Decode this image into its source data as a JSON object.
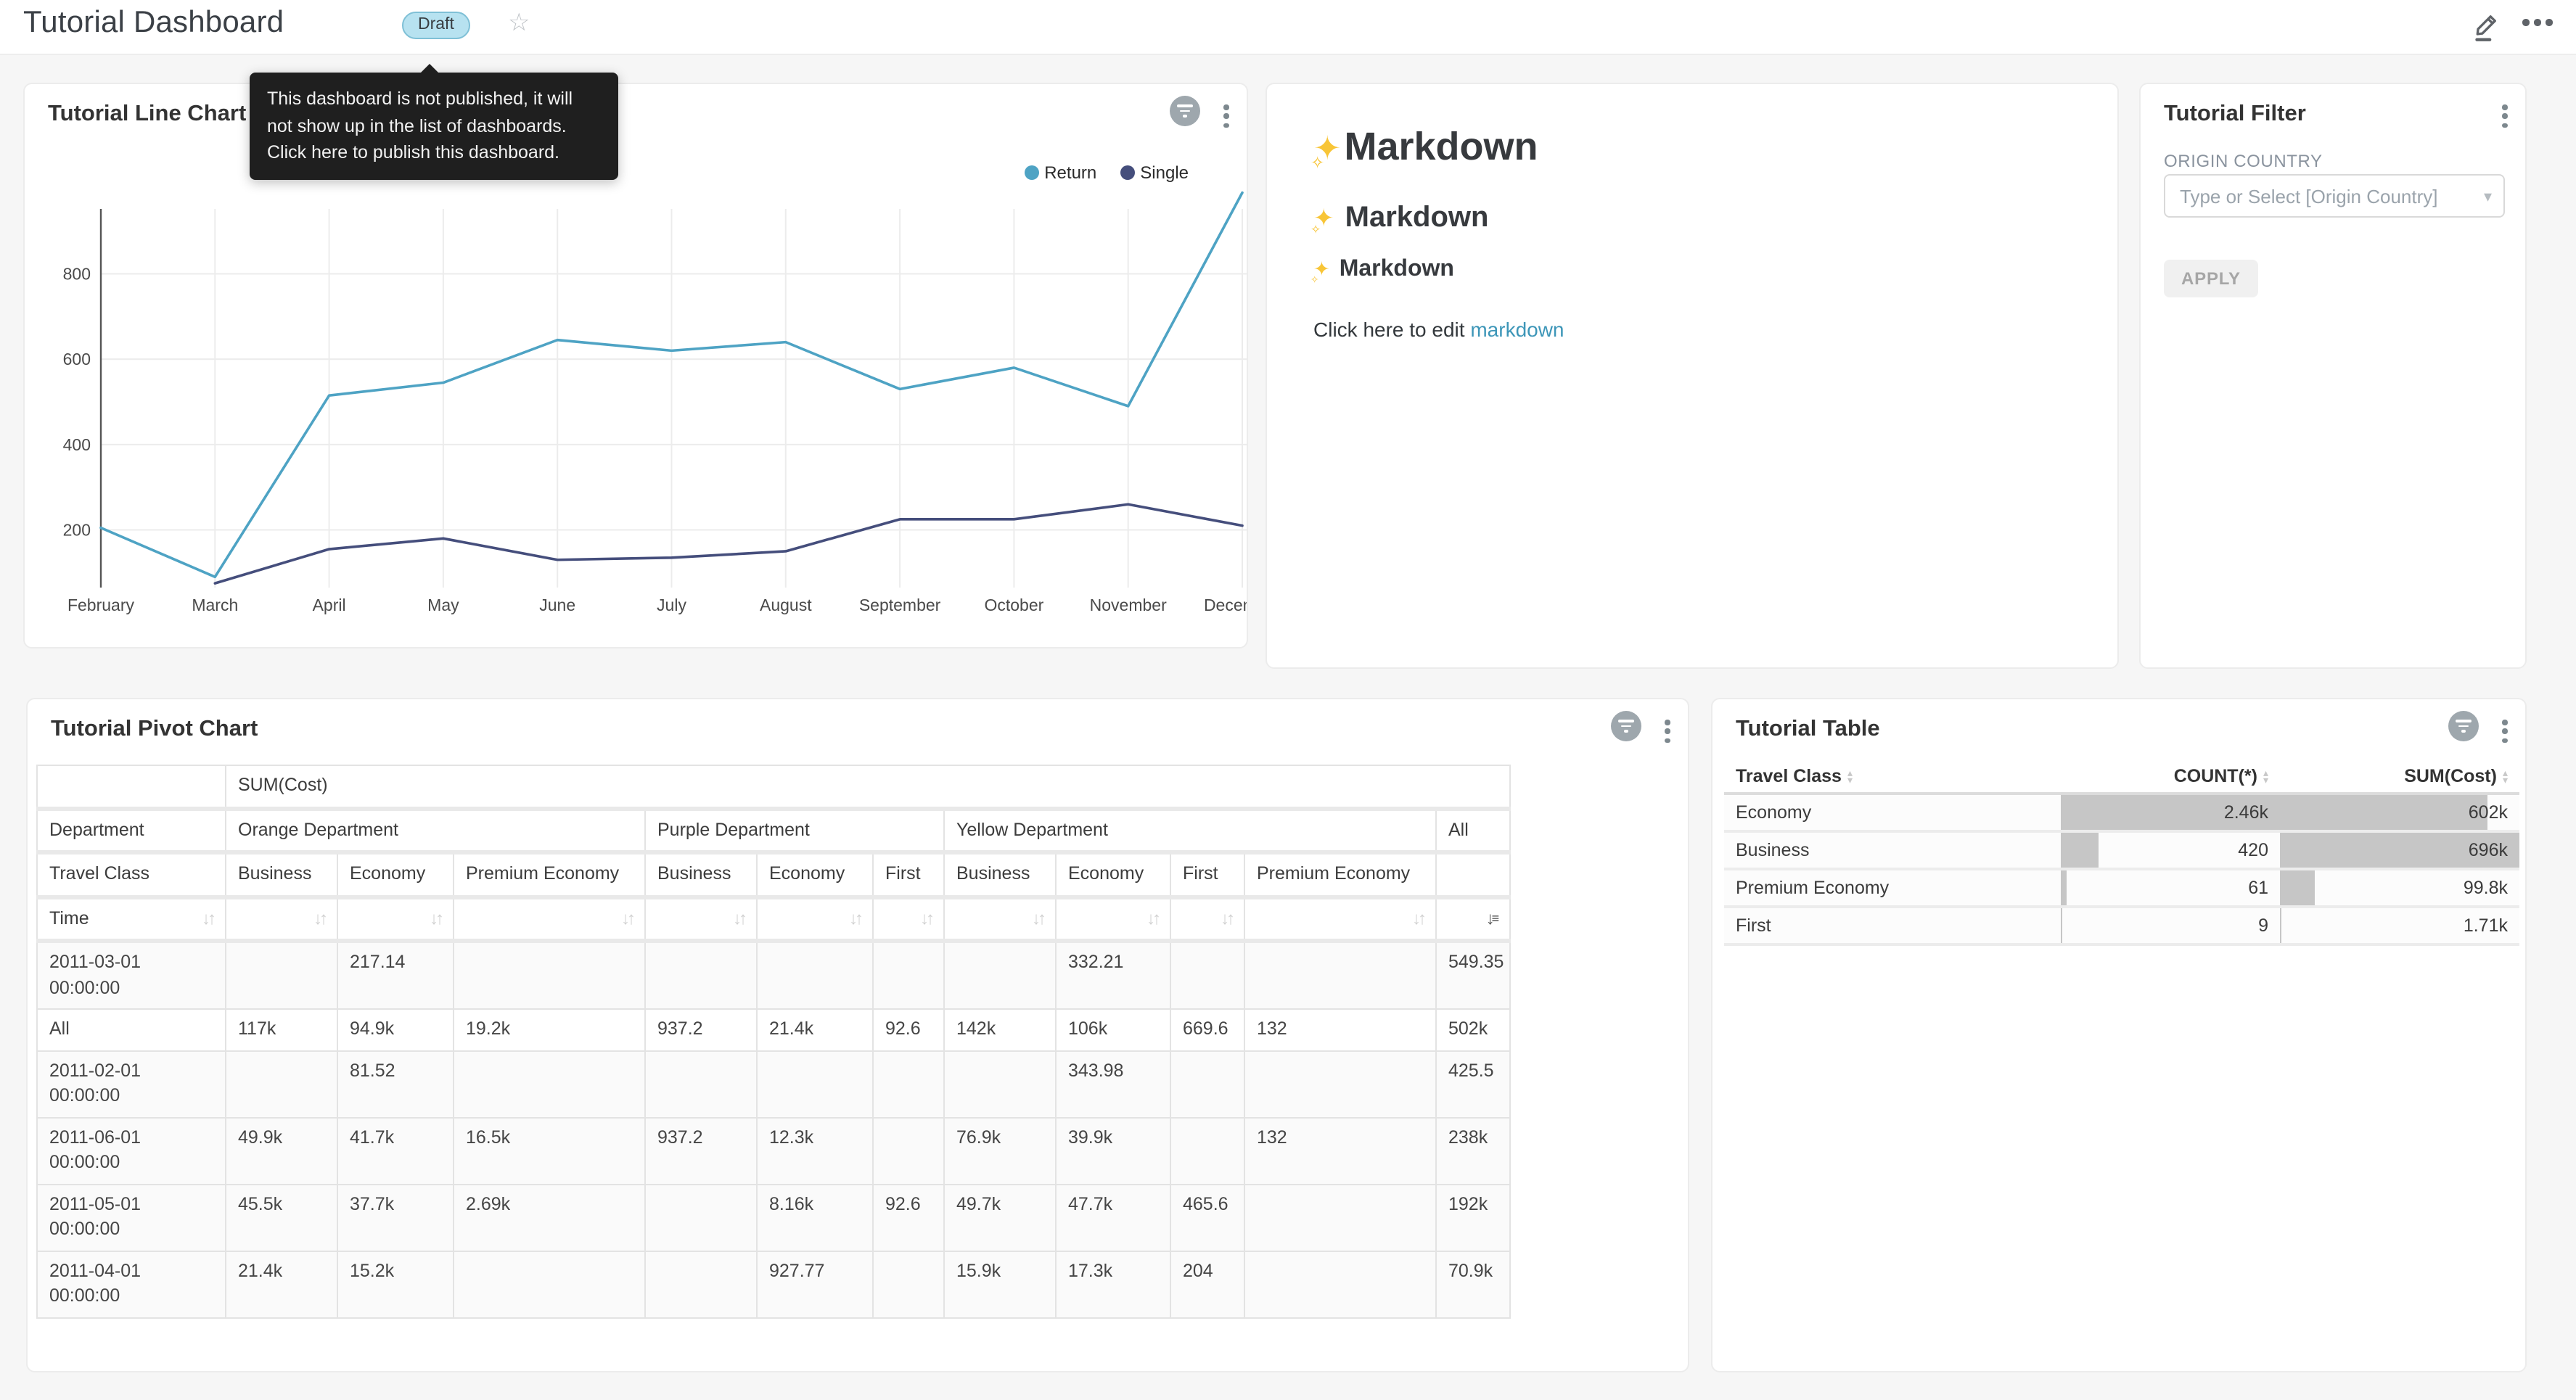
{
  "header": {
    "title": "Tutorial Dashboard",
    "badge": "Draft",
    "tooltip": "This dashboard is not published, it will not show up in the list of dashboards. Click here to publish this dashboard."
  },
  "colors": {
    "return_line": "#4EA3C4",
    "single_line": "#454E7C",
    "link": "#3D96B8",
    "badge_bg": "#B7E2F0",
    "tooltip_bg": "#1F1F1F",
    "bar_fill": "#C6C6C6"
  },
  "icons": {
    "favorite": "☆",
    "select_caret": "▾",
    "sort_inactive": "↓↑",
    "sort_active_desc": "↓",
    "caret_up": "▴",
    "caret_down": "▾"
  },
  "chart_data": {
    "type": "line",
    "title": "Tutorial Line Chart",
    "categories": [
      "February",
      "March",
      "April",
      "May",
      "June",
      "July",
      "August",
      "September",
      "October",
      "November",
      "December"
    ],
    "series": [
      {
        "name": "Return",
        "color": "#4EA3C4",
        "values": [
          205,
          90,
          515,
          545,
          645,
          620,
          640,
          530,
          580,
          490,
          990
        ]
      },
      {
        "name": "Single",
        "color": "#454E7C",
        "values": [
          null,
          75,
          155,
          180,
          130,
          135,
          150,
          225,
          225,
          260,
          210
        ]
      }
    ],
    "ylim": [
      65,
      1010
    ],
    "yticks": [
      200,
      400,
      600,
      800
    ],
    "grid": true,
    "legend_position": "top-right"
  },
  "panels": {
    "line_chart": {
      "title": "Tutorial Line Chart"
    },
    "markdown": {
      "h1": "Markdown",
      "h2": "Markdown",
      "h3": "Markdown",
      "paragraph_prefix": "Click here to edit ",
      "link_text": "markdown"
    },
    "filter": {
      "title": "Tutorial Filter",
      "field_label": "ORIGIN COUNTRY",
      "select_placeholder": "Type or Select [Origin Country]",
      "apply_label": "APPLY"
    },
    "pivot": {
      "title": "Tutorial Pivot Chart",
      "measure_label": "SUM(Cost)",
      "corner_row1": "Department",
      "corner_row2": "Travel Class",
      "corner_row3": "Time",
      "col_groups": [
        {
          "label": "Orange Department",
          "cols": [
            "Business",
            "Economy",
            "Premium Economy"
          ]
        },
        {
          "label": "Purple Department",
          "cols": [
            "Business",
            "Economy",
            "First"
          ]
        },
        {
          "label": "Yellow Department",
          "cols": [
            "Business",
            "Economy",
            "First",
            "Premium Economy"
          ]
        },
        {
          "label": "All",
          "cols": [
            ""
          ]
        }
      ],
      "active_sort_column": "All",
      "rows": [
        {
          "label": "2011-03-01 00:00:00",
          "values": [
            "",
            "217.14",
            "",
            "",
            "",
            "",
            "",
            "332.21",
            "",
            "",
            "549.35"
          ]
        },
        {
          "label": "All",
          "values": [
            "117k",
            "94.9k",
            "19.2k",
            "937.2",
            "21.4k",
            "92.6",
            "142k",
            "106k",
            "669.6",
            "132",
            "502k"
          ]
        },
        {
          "label": "2011-02-01 00:00:00",
          "values": [
            "",
            "81.52",
            "",
            "",
            "",
            "",
            "",
            "343.98",
            "",
            "",
            "425.5"
          ]
        },
        {
          "label": "2011-06-01 00:00:00",
          "values": [
            "49.9k",
            "41.7k",
            "16.5k",
            "937.2",
            "12.3k",
            "",
            "76.9k",
            "39.9k",
            "",
            "132",
            "238k"
          ]
        },
        {
          "label": "2011-05-01 00:00:00",
          "values": [
            "45.5k",
            "37.7k",
            "2.69k",
            "",
            "8.16k",
            "92.6",
            "49.7k",
            "47.7k",
            "465.6",
            "",
            "192k"
          ]
        },
        {
          "label": "2011-04-01 00:00:00",
          "values": [
            "21.4k",
            "15.2k",
            "",
            "",
            "927.77",
            "",
            "15.9k",
            "17.3k",
            "204",
            "",
            "70.9k"
          ]
        }
      ]
    },
    "table": {
      "title": "Tutorial Table",
      "columns": [
        {
          "label": "Travel Class",
          "align": "left"
        },
        {
          "label": "COUNT(*)",
          "align": "right"
        },
        {
          "label": "SUM(Cost)",
          "align": "right"
        }
      ],
      "rows": [
        {
          "cells": [
            "Economy",
            "2.46k",
            "602k"
          ],
          "bars": [
            null,
            100,
            86.5
          ]
        },
        {
          "cells": [
            "Business",
            "420",
            "696k"
          ],
          "bars": [
            null,
            17.1,
            100
          ]
        },
        {
          "cells": [
            "Premium Economy",
            "61",
            "99.8k"
          ],
          "bars": [
            null,
            2.5,
            14.3
          ]
        },
        {
          "cells": [
            "First",
            "9",
            "1.71k"
          ],
          "bars": [
            null,
            0.4,
            0.3
          ]
        }
      ]
    }
  }
}
